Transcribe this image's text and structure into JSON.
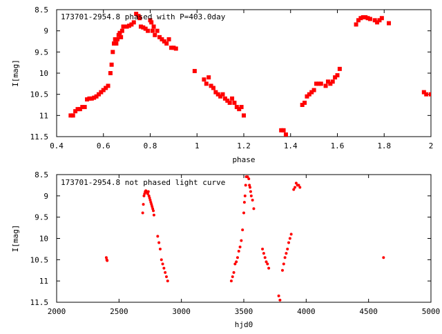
{
  "chart_data": [
    {
      "type": "scatter",
      "title": "173701-2954.8 phased with P=403.0day",
      "xlabel": "phase",
      "ylabel": "I[mag]",
      "xlim": [
        0.4,
        2.0
      ],
      "ylim": [
        8.5,
        11.5
      ],
      "y_inverted": true,
      "x_ticks": [
        "0.4",
        "0.6",
        "0.8",
        "1",
        "1.2",
        "1.4",
        "1.6",
        "1.8",
        "2"
      ],
      "y_ticks": [
        "8.5",
        "9",
        "9.5",
        "10",
        "10.5",
        "11",
        "11.5"
      ],
      "grid": false,
      "marker_color": "#ff0000",
      "series": [
        {
          "x": [
            0.46,
            0.47,
            0.48,
            0.49,
            0.5,
            0.51,
            0.52,
            0.53,
            0.54,
            0.55,
            0.56,
            0.57,
            0.58,
            0.59,
            0.6,
            0.61,
            0.62,
            0.63,
            0.635,
            0.64,
            0.645,
            0.65,
            0.655,
            0.66,
            0.665,
            0.67,
            0.675,
            0.68,
            0.685,
            0.69,
            0.7,
            0.71,
            0.72,
            0.73,
            0.74,
            0.75,
            0.755,
            0.76,
            0.77,
            0.78,
            0.79,
            0.8,
            0.805,
            0.81,
            0.815,
            0.82,
            0.83,
            0.84,
            0.85,
            0.86,
            0.87,
            0.88,
            0.89,
            0.9,
            0.91,
            0.99,
            1.03,
            1.04,
            1.05,
            1.06,
            1.07,
            1.08,
            1.09,
            1.1,
            1.11,
            1.12,
            1.13,
            1.14,
            1.15,
            1.16,
            1.17,
            1.18,
            1.19,
            1.2,
            1.36,
            1.37,
            1.38,
            1.45,
            1.46,
            1.47,
            1.48,
            1.49,
            1.5,
            1.51,
            1.52,
            1.53,
            1.55,
            1.56,
            1.57,
            1.58,
            1.59,
            1.6,
            1.61,
            1.68,
            1.69,
            1.7,
            1.71,
            1.72,
            1.73,
            1.74,
            1.76,
            1.77,
            1.78,
            1.79,
            1.82,
            1.97,
            1.98,
            2.0
          ],
          "y": [
            11.0,
            11.0,
            10.9,
            10.85,
            10.85,
            10.8,
            10.8,
            10.62,
            10.6,
            10.6,
            10.58,
            10.55,
            10.5,
            10.45,
            10.4,
            10.35,
            10.3,
            10.0,
            9.8,
            9.5,
            9.3,
            9.2,
            9.3,
            9.2,
            9.1,
            9.05,
            9.15,
            9.0,
            8.9,
            8.9,
            8.9,
            8.88,
            8.85,
            8.8,
            8.6,
            8.65,
            8.7,
            8.9,
            8.92,
            8.95,
            9.0,
            8.75,
            8.8,
            9.0,
            8.9,
            9.1,
            9.0,
            9.15,
            9.2,
            9.25,
            9.3,
            9.2,
            9.4,
            9.4,
            9.42,
            9.95,
            10.15,
            10.25,
            10.1,
            10.3,
            10.35,
            10.45,
            10.5,
            10.55,
            10.5,
            10.6,
            10.65,
            10.7,
            10.6,
            10.7,
            10.8,
            10.85,
            10.8,
            11.0,
            11.35,
            11.35,
            11.45,
            10.75,
            10.7,
            10.55,
            10.5,
            10.45,
            10.4,
            10.25,
            10.25,
            10.25,
            10.3,
            10.2,
            10.25,
            10.2,
            10.1,
            10.05,
            9.9,
            8.85,
            8.75,
            8.7,
            8.68,
            8.68,
            8.7,
            8.72,
            8.75,
            8.8,
            8.75,
            8.7,
            8.82,
            10.45,
            10.5,
            10.5
          ]
        }
      ]
    },
    {
      "type": "scatter",
      "title": "173701-2954.8 not phased light curve",
      "xlabel": "hjd0",
      "ylabel": "I[mag]",
      "xlim": [
        2000,
        5000
      ],
      "ylim": [
        8.5,
        11.5
      ],
      "y_inverted": true,
      "x_ticks": [
        "2000",
        "2500",
        "3000",
        "3500",
        "4000",
        "4500",
        "5000"
      ],
      "y_ticks": [
        "8.5",
        "9",
        "9.5",
        "10",
        "10.5",
        "11",
        "11.5"
      ],
      "grid": false,
      "marker_color": "#ff0000",
      "series": [
        {
          "x": [
            2398,
            2402,
            2405,
            2690,
            2695,
            2700,
            2705,
            2710,
            2715,
            2720,
            2725,
            2730,
            2735,
            2740,
            2745,
            2750,
            2755,
            2760,
            2765,
            2770,
            2775,
            2780,
            2810,
            2820,
            2830,
            2840,
            2850,
            2860,
            2870,
            2880,
            2890,
            3400,
            3410,
            3420,
            3430,
            3440,
            3450,
            3460,
            3470,
            3480,
            3490,
            3500,
            3505,
            3510,
            3515,
            3520,
            3530,
            3540,
            3545,
            3550,
            3555,
            3560,
            3570,
            3580,
            3650,
            3660,
            3670,
            3680,
            3690,
            3700,
            3780,
            3790,
            3810,
            3820,
            3830,
            3840,
            3850,
            3860,
            3870,
            3880,
            3900,
            3910,
            3920,
            3930,
            3940,
            3950,
            4620
          ],
          "y": [
            10.45,
            10.5,
            10.52,
            9.4,
            9.2,
            9.0,
            8.95,
            8.9,
            8.88,
            8.9,
            8.92,
            8.95,
            8.9,
            9.0,
            9.05,
            9.1,
            9.15,
            9.2,
            9.25,
            9.3,
            9.35,
            9.45,
            9.95,
            10.1,
            10.25,
            10.5,
            10.6,
            10.7,
            10.8,
            10.9,
            11.0,
            11.0,
            10.9,
            10.8,
            10.6,
            10.55,
            10.45,
            10.3,
            10.2,
            10.05,
            9.8,
            9.4,
            9.15,
            9.0,
            8.75,
            8.55,
            8.55,
            8.6,
            8.75,
            8.8,
            8.9,
            9.0,
            9.1,
            9.3,
            10.25,
            10.35,
            10.45,
            10.55,
            10.6,
            10.7,
            11.35,
            11.45,
            10.75,
            10.6,
            10.45,
            10.35,
            10.25,
            10.1,
            10.0,
            9.9,
            8.85,
            8.8,
            8.7,
            8.75,
            8.75,
            8.8,
            10.45
          ]
        }
      ]
    }
  ]
}
